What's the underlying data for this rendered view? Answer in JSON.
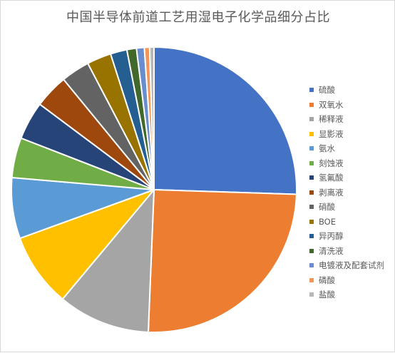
{
  "chart_data": {
    "type": "pie",
    "title": "中国半导体前道工艺用湿电子化学品细分占比",
    "legend_position": "right",
    "slices": [
      {
        "label": "硫酸",
        "value": 25.9,
        "color": "#4472C4"
      },
      {
        "label": "双氧水",
        "value": 25.5,
        "color": "#ED7D31"
      },
      {
        "label": "稀释液",
        "value": 10.6,
        "color": "#A5A5A5"
      },
      {
        "label": "显影液",
        "value": 8.5,
        "color": "#FFC000"
      },
      {
        "label": "氨水",
        "value": 7.0,
        "color": "#5B9BD5"
      },
      {
        "label": "刻蚀液",
        "value": 4.6,
        "color": "#70AD47"
      },
      {
        "label": "氢氟酸",
        "value": 4.4,
        "color": "#264478"
      },
      {
        "label": "剥离液",
        "value": 3.9,
        "color": "#9E480E"
      },
      {
        "label": "硝酸",
        "value": 3.3,
        "color": "#636363"
      },
      {
        "label": "BOE",
        "value": 2.8,
        "color": "#997300"
      },
      {
        "label": "异丙醇",
        "value": 1.9,
        "color": "#255E91"
      },
      {
        "label": "清洗液",
        "value": 1.1,
        "color": "#43682B"
      },
      {
        "label": "电镀液及配套试剂",
        "value": 0.9,
        "color": "#698ED0"
      },
      {
        "label": "磷酸",
        "value": 0.6,
        "color": "#F1975A"
      },
      {
        "label": "盐酸",
        "value": 0.5,
        "color": "#B7B7B7"
      }
    ]
  }
}
